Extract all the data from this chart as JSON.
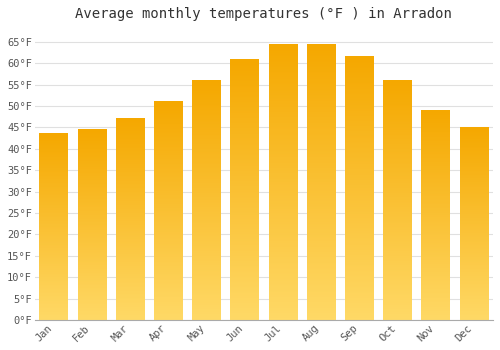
{
  "title": "Average monthly temperatures (°F ) in Arradon",
  "months": [
    "Jan",
    "Feb",
    "Mar",
    "Apr",
    "May",
    "Jun",
    "Jul",
    "Aug",
    "Sep",
    "Oct",
    "Nov",
    "Dec"
  ],
  "values": [
    43.7,
    44.5,
    47.0,
    51.0,
    56.0,
    61.0,
    64.5,
    64.5,
    61.7,
    56.0,
    49.0,
    45.0
  ],
  "bar_color_top": "#F5A800",
  "bar_color_bottom": "#FFD966",
  "ylim": [
    0,
    68
  ],
  "yticks": [
    0,
    5,
    10,
    15,
    20,
    25,
    30,
    35,
    40,
    45,
    50,
    55,
    60,
    65
  ],
  "ytick_labels": [
    "0°F",
    "5°F",
    "10°F",
    "15°F",
    "20°F",
    "25°F",
    "30°F",
    "35°F",
    "40°F",
    "45°F",
    "50°F",
    "55°F",
    "60°F",
    "65°F"
  ],
  "background_color": "#ffffff",
  "grid_color": "#e0e0e0",
  "title_fontsize": 10,
  "tick_fontsize": 7.5,
  "bar_width": 0.75
}
